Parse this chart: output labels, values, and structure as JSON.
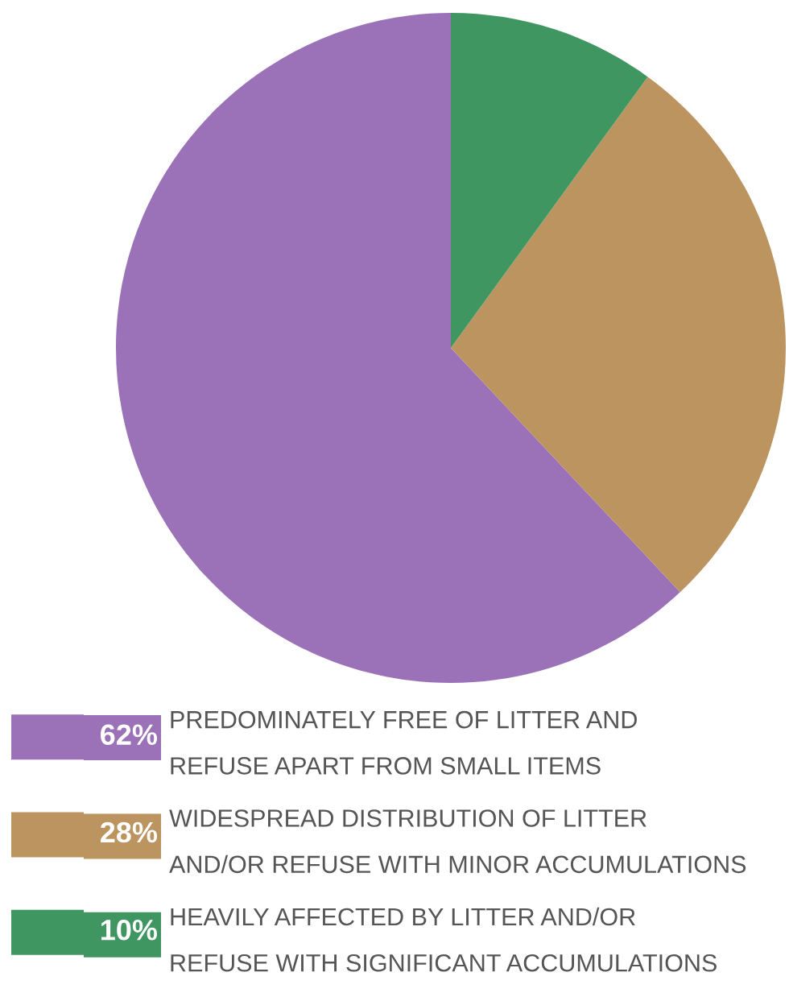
{
  "chart_data": {
    "type": "pie",
    "categories": [
      "PREDOMINATELY FREE OF LITTER AND\nREFUSE APART FROM SMALL ITEMS",
      "WIDESPREAD DISTRIBUTION OF LITTER\nAND/OR REFUSE WITH MINOR ACCUMULATIONS",
      "HEAVILY AFFECTED BY LITTER AND/OR\nREFUSE WITH SIGNIFICANT ACCUMULATIONS"
    ],
    "values": [
      62,
      28,
      10
    ],
    "value_labels": [
      "62%",
      "28%",
      "10%"
    ],
    "colors": [
      "#9b72b8",
      "#bc9460",
      "#3f9661"
    ],
    "legend": "bottom"
  }
}
